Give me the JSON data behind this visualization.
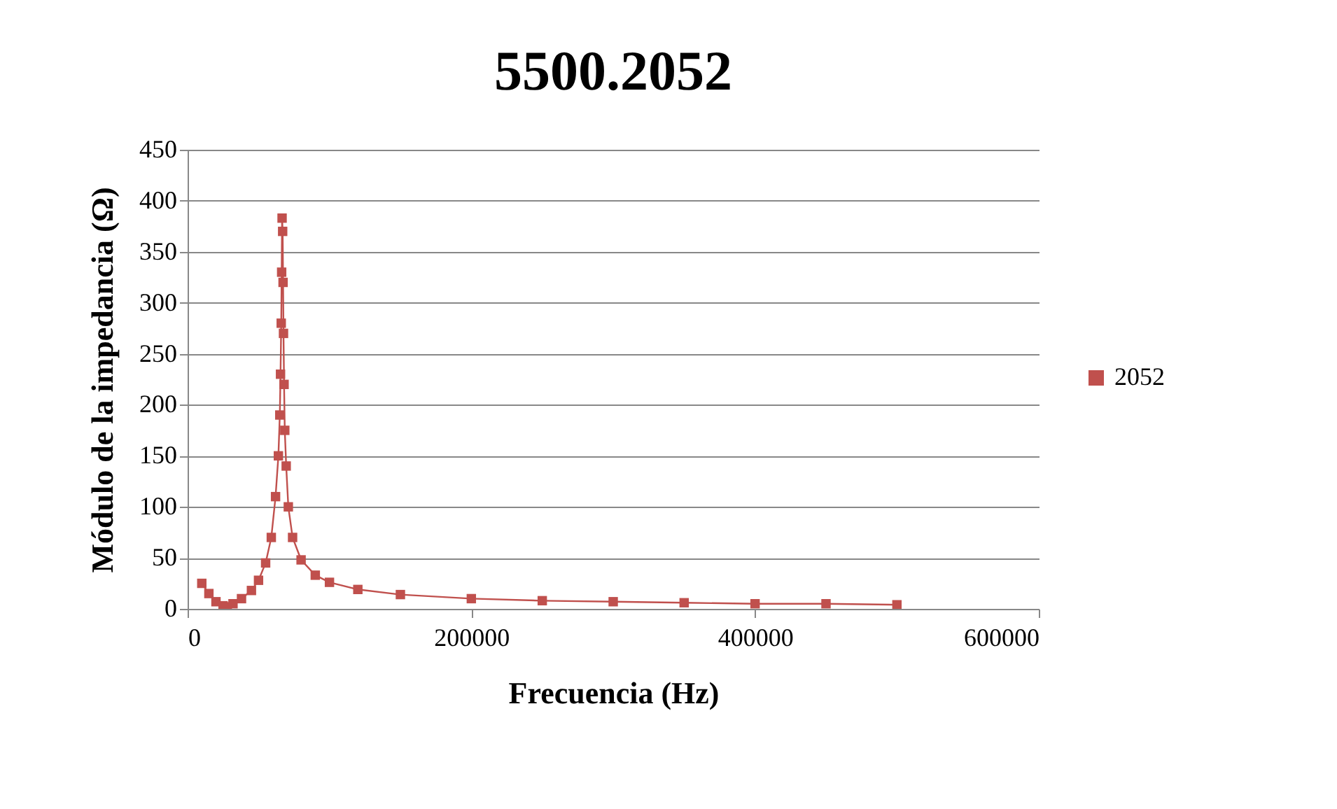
{
  "chart_data": {
    "type": "line",
    "title": "5500.2052",
    "xlabel": "Frecuencia (Hz)",
    "ylabel": "Módulo de la impedancia (Ω)",
    "xlim": [
      0,
      600000
    ],
    "xticks": [
      0,
      200000,
      400000,
      600000
    ],
    "ylim": [
      0,
      450
    ],
    "yticks": [
      0,
      50,
      100,
      150,
      200,
      250,
      300,
      350,
      400,
      450
    ],
    "grid": "y",
    "legend": "right",
    "marker": "square",
    "line_style": "solid",
    "series": [
      {
        "name": "2052",
        "color": "#c0504d",
        "x": [
          10000,
          15000,
          20000,
          25000,
          28000,
          32000,
          38000,
          45000,
          50000,
          55000,
          59000,
          62000,
          64000,
          65000,
          65500,
          66000,
          66300,
          66600,
          67000,
          67300,
          67600,
          68000,
          68500,
          69500,
          71000,
          74000,
          80000,
          90000,
          100000,
          120000,
          150000,
          200000,
          250000,
          300000,
          350000,
          400000,
          450000,
          500000
        ],
        "values": [
          25,
          15,
          7,
          3,
          2,
          5,
          10,
          18,
          28,
          45,
          70,
          110,
          150,
          190,
          230,
          280,
          330,
          383,
          370,
          320,
          270,
          220,
          175,
          140,
          100,
          70,
          48,
          33,
          26,
          19,
          14,
          10,
          8,
          7,
          6,
          5,
          5,
          4
        ]
      }
    ]
  }
}
